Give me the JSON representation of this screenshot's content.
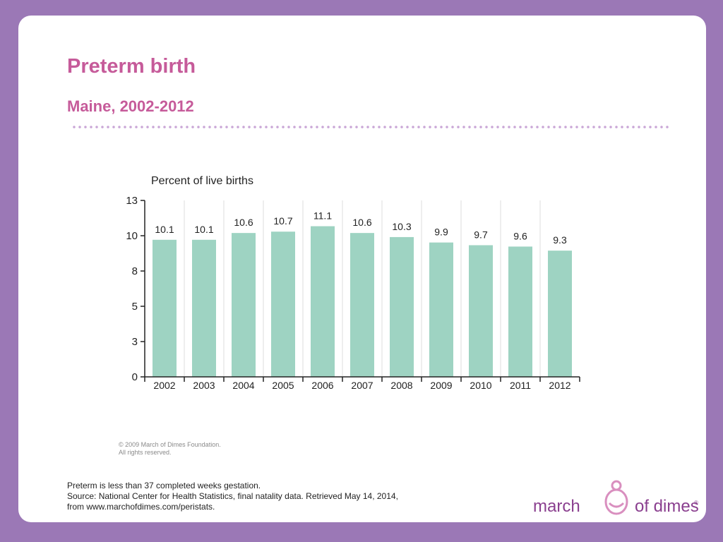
{
  "title": "Preterm birth",
  "subtitle": "Maine, 2002-2012",
  "colors": {
    "background": "#9b78b6",
    "accent": "#c65b9a",
    "bar": "#9ed3c2"
  },
  "chart_data": {
    "type": "bar",
    "ylabel": "Percent of live births",
    "categories": [
      "2002",
      "2003",
      "2004",
      "2005",
      "2006",
      "2007",
      "2008",
      "2009",
      "2010",
      "2011",
      "2012"
    ],
    "values": [
      10.1,
      10.1,
      10.6,
      10.7,
      11.1,
      10.6,
      10.3,
      9.9,
      9.7,
      9.6,
      9.3
    ],
    "value_labels": [
      "10.1",
      "10.1",
      "10.6",
      "10.7",
      "11.1",
      "10.6",
      "10.3",
      "9.9",
      "9.7",
      "9.6",
      "9.3"
    ],
    "y_ticks": [
      0,
      3,
      5,
      8,
      10,
      13
    ],
    "y_tick_positions": [
      0,
      2.6,
      5.2,
      7.8,
      10.4,
      13
    ],
    "ylim": [
      0,
      13
    ],
    "grid": "vertical"
  },
  "copyright": [
    "© 2009 March of Dimes Foundation.",
    "All rights reserved."
  ],
  "footnote": [
    "Preterm is less than 37 completed weeks gestation.",
    "Source: National Center for Health Statistics, final natality data. Retrieved May 14, 2014,",
    "from www.marchofdimes.com/peristats."
  ],
  "logo": {
    "left": "march",
    "right": "of dimes",
    "mark": "®"
  }
}
